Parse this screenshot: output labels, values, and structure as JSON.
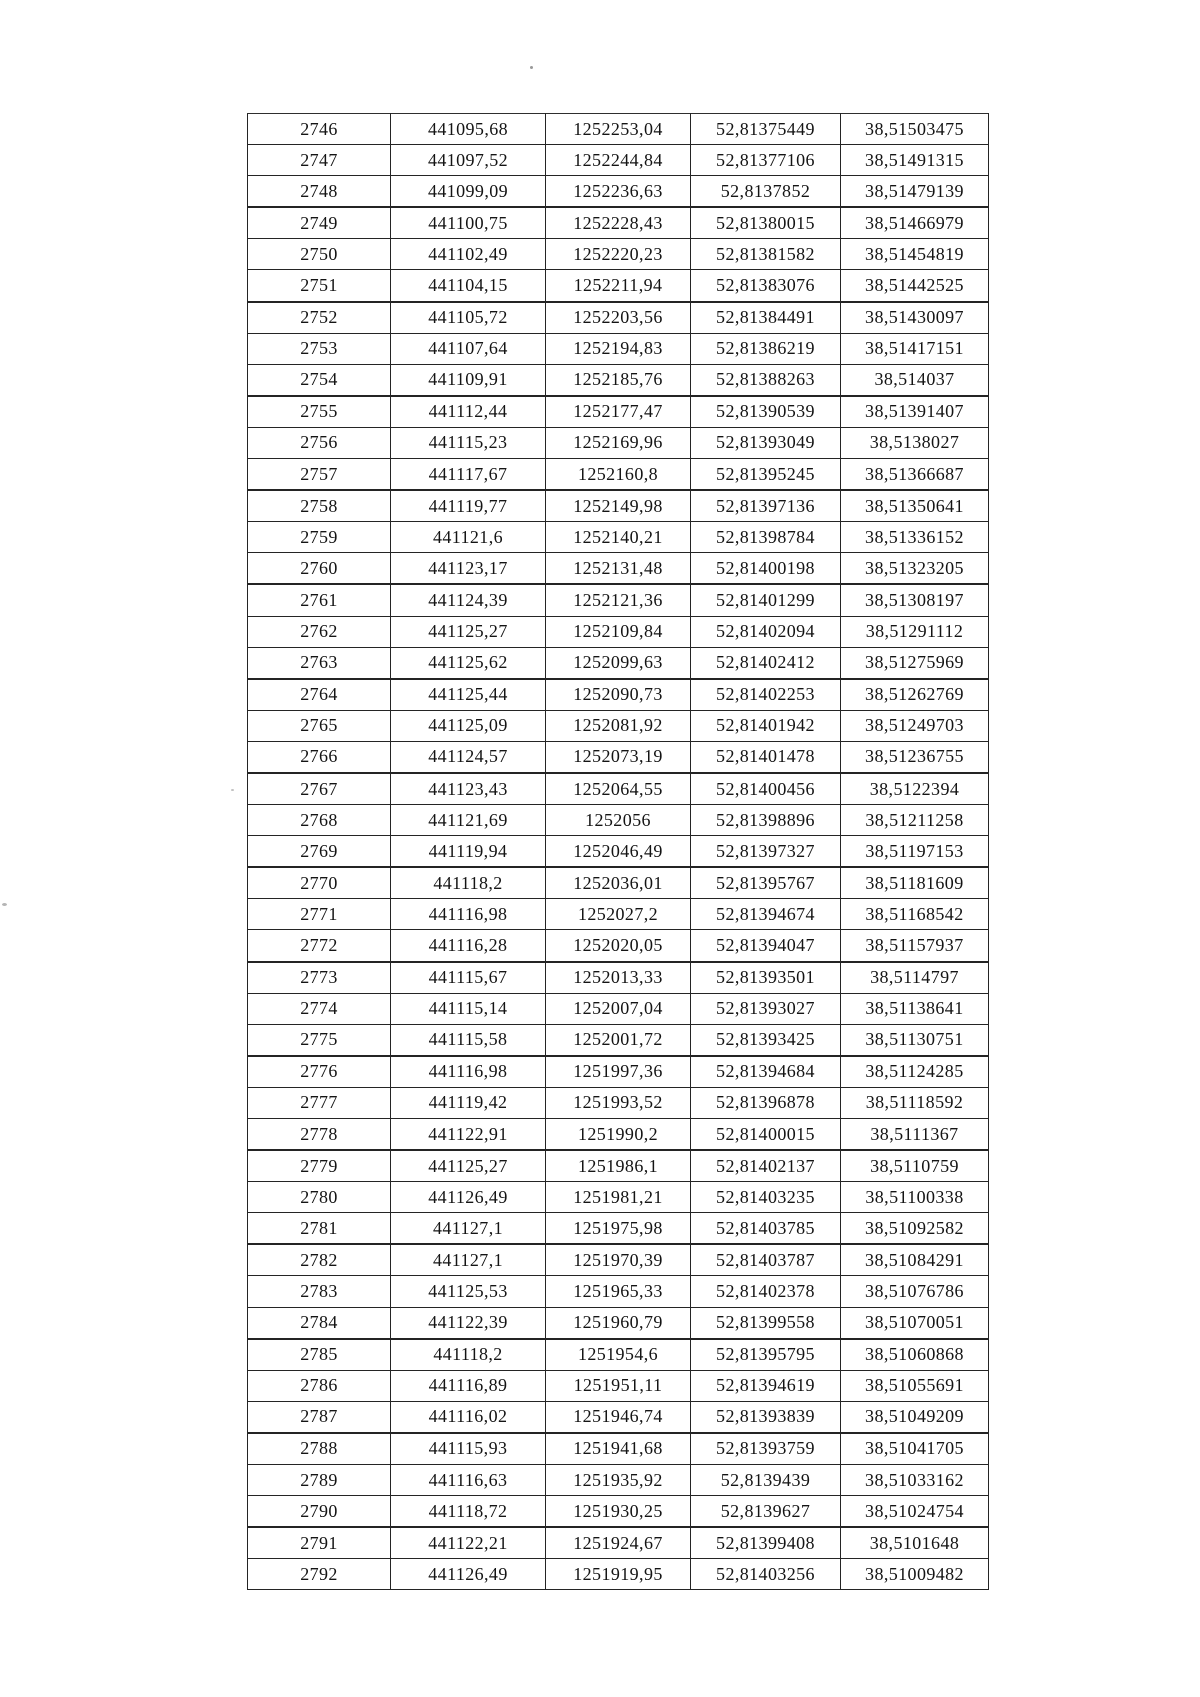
{
  "table": {
    "rows": [
      [
        "2746",
        "441095,68",
        "1252253,04",
        "52,81375449",
        "38,51503475"
      ],
      [
        "2747",
        "441097,52",
        "1252244,84",
        "52,81377106",
        "38,51491315"
      ],
      [
        "2748",
        "441099,09",
        "1252236,63",
        "52,8137852",
        "38,51479139"
      ],
      [
        "2749",
        "441100,75",
        "1252228,43",
        "52,81380015",
        "38,51466979"
      ],
      [
        "2750",
        "441102,49",
        "1252220,23",
        "52,81381582",
        "38,51454819"
      ],
      [
        "2751",
        "441104,15",
        "1252211,94",
        "52,81383076",
        "38,51442525"
      ],
      [
        "2752",
        "441105,72",
        "1252203,56",
        "52,81384491",
        "38,51430097"
      ],
      [
        "2753",
        "441107,64",
        "1252194,83",
        "52,81386219",
        "38,51417151"
      ],
      [
        "2754",
        "441109,91",
        "1252185,76",
        "52,81388263",
        "38,514037"
      ],
      [
        "2755",
        "441112,44",
        "1252177,47",
        "52,81390539",
        "38,51391407"
      ],
      [
        "2756",
        "441115,23",
        "1252169,96",
        "52,81393049",
        "38,5138027"
      ],
      [
        "2757",
        "441117,67",
        "1252160,8",
        "52,81395245",
        "38,51366687"
      ],
      [
        "2758",
        "441119,77",
        "1252149,98",
        "52,81397136",
        "38,51350641"
      ],
      [
        "2759",
        "441121,6",
        "1252140,21",
        "52,81398784",
        "38,51336152"
      ],
      [
        "2760",
        "441123,17",
        "1252131,48",
        "52,81400198",
        "38,51323205"
      ],
      [
        "2761",
        "441124,39",
        "1252121,36",
        "52,81401299",
        "38,51308197"
      ],
      [
        "2762",
        "441125,27",
        "1252109,84",
        "52,81402094",
        "38,51291112"
      ],
      [
        "2763",
        "441125,62",
        "1252099,63",
        "52,81402412",
        "38,51275969"
      ],
      [
        "2764",
        "441125,44",
        "1252090,73",
        "52,81402253",
        "38,51262769"
      ],
      [
        "2765",
        "441125,09",
        "1252081,92",
        "52,81401942",
        "38,51249703"
      ],
      [
        "2766",
        "441124,57",
        "1252073,19",
        "52,81401478",
        "38,51236755"
      ],
      [
        "2767",
        "441123,43",
        "1252064,55",
        "52,81400456",
        "38,5122394"
      ],
      [
        "2768",
        "441121,69",
        "1252056",
        "52,81398896",
        "38,51211258"
      ],
      [
        "2769",
        "441119,94",
        "1252046,49",
        "52,81397327",
        "38,51197153"
      ],
      [
        "2770",
        "441118,2",
        "1252036,01",
        "52,81395767",
        "38,51181609"
      ],
      [
        "2771",
        "441116,98",
        "1252027,2",
        "52,81394674",
        "38,51168542"
      ],
      [
        "2772",
        "441116,28",
        "1252020,05",
        "52,81394047",
        "38,51157937"
      ],
      [
        "2773",
        "441115,67",
        "1252013,33",
        "52,81393501",
        "38,5114797"
      ],
      [
        "2774",
        "441115,14",
        "1252007,04",
        "52,81393027",
        "38,51138641"
      ],
      [
        "2775",
        "441115,58",
        "1252001,72",
        "52,81393425",
        "38,51130751"
      ],
      [
        "2776",
        "441116,98",
        "1251997,36",
        "52,81394684",
        "38,51124285"
      ],
      [
        "2777",
        "441119,42",
        "1251993,52",
        "52,81396878",
        "38,51118592"
      ],
      [
        "2778",
        "441122,91",
        "1251990,2",
        "52,81400015",
        "38,5111367"
      ],
      [
        "2779",
        "441125,27",
        "1251986,1",
        "52,81402137",
        "38,5110759"
      ],
      [
        "2780",
        "441126,49",
        "1251981,21",
        "52,81403235",
        "38,51100338"
      ],
      [
        "2781",
        "441127,1",
        "1251975,98",
        "52,81403785",
        "38,51092582"
      ],
      [
        "2782",
        "441127,1",
        "1251970,39",
        "52,81403787",
        "38,51084291"
      ],
      [
        "2783",
        "441125,53",
        "1251965,33",
        "52,81402378",
        "38,51076786"
      ],
      [
        "2784",
        "441122,39",
        "1251960,79",
        "52,81399558",
        "38,51070051"
      ],
      [
        "2785",
        "441118,2",
        "1251954,6",
        "52,81395795",
        "38,51060868"
      ],
      [
        "2786",
        "441116,89",
        "1251951,11",
        "52,81394619",
        "38,51055691"
      ],
      [
        "2787",
        "441116,02",
        "1251946,74",
        "52,81393839",
        "38,51049209"
      ],
      [
        "2788",
        "441115,93",
        "1251941,68",
        "52,81393759",
        "38,51041705"
      ],
      [
        "2789",
        "441116,63",
        "1251935,92",
        "52,8139439",
        "38,51033162"
      ],
      [
        "2790",
        "441118,72",
        "1251930,25",
        "52,8139627",
        "38,51024754"
      ],
      [
        "2791",
        "441122,21",
        "1251924,67",
        "52,81399408",
        "38,5101648"
      ],
      [
        "2792",
        "441126,49",
        "1251919,95",
        "52,81403256",
        "38,51009482"
      ]
    ]
  }
}
